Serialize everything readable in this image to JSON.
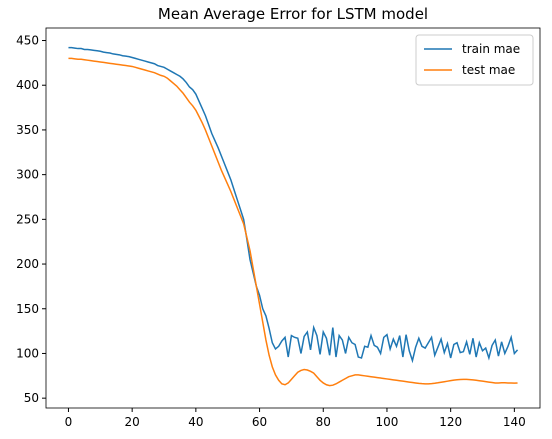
{
  "chart_data": {
    "type": "line",
    "title": "Mean Average Error for LSTM model",
    "x": [
      0,
      1,
      2,
      3,
      4,
      5,
      6,
      7,
      8,
      9,
      10,
      11,
      12,
      13,
      14,
      15,
      16,
      17,
      18,
      19,
      20,
      21,
      22,
      23,
      24,
      25,
      26,
      27,
      28,
      29,
      30,
      31,
      32,
      33,
      34,
      35,
      36,
      37,
      38,
      39,
      40,
      41,
      42,
      43,
      44,
      45,
      46,
      47,
      48,
      49,
      50,
      51,
      52,
      53,
      54,
      55,
      56,
      57,
      58,
      59,
      60,
      61,
      62,
      63,
      64,
      65,
      66,
      67,
      68,
      69,
      70,
      71,
      72,
      73,
      74,
      75,
      76,
      77,
      78,
      79,
      80,
      81,
      82,
      83,
      84,
      85,
      86,
      87,
      88,
      89,
      90,
      91,
      92,
      93,
      94,
      95,
      96,
      97,
      98,
      99,
      100,
      101,
      102,
      103,
      104,
      105,
      106,
      107,
      108,
      109,
      110,
      111,
      112,
      113,
      114,
      115,
      116,
      117,
      118,
      119,
      120,
      121,
      122,
      123,
      124,
      125,
      126,
      127,
      128,
      129,
      130,
      131,
      132,
      133,
      134,
      135,
      136,
      137,
      138,
      139,
      140,
      141
    ],
    "series": [
      {
        "name": "train mae",
        "color": "#1f77b4",
        "values": [
          442,
          442,
          441.5,
          441,
          441,
          440,
          440,
          439.5,
          439,
          438.5,
          438,
          437,
          436.5,
          436,
          435,
          434.5,
          434,
          433,
          432.5,
          432,
          431,
          430,
          429,
          428,
          427,
          426,
          425,
          424,
          422,
          421,
          420,
          418,
          416,
          414,
          412,
          410,
          407,
          403,
          398,
          395,
          390,
          382,
          374,
          366,
          356,
          346,
          338,
          330,
          321,
          312,
          303,
          294,
          283,
          272,
          261,
          250,
          228,
          205,
          190,
          175,
          165,
          150,
          142,
          128,
          112,
          105,
          108,
          114,
          118,
          96,
          120,
          118,
          117,
          100,
          119,
          124,
          104,
          129,
          120,
          99,
          124,
          117,
          98,
          129,
          96,
          120,
          115,
          100,
          118,
          112,
          110,
          96,
          95,
          108,
          107,
          120,
          109,
          107,
          100,
          118,
          121,
          105,
          116,
          108,
          120,
          96,
          121,
          103,
          92,
          107,
          117,
          108,
          106,
          112,
          118,
          98,
          107,
          116,
          101,
          111,
          95,
          110,
          112,
          101,
          102,
          113,
          99,
          117,
          96,
          112,
          103,
          106,
          95,
          109,
          115,
          97,
          113,
          100,
          108,
          118,
          100,
          104
        ]
      },
      {
        "name": "test mae",
        "color": "#ff7f0e",
        "values": [
          430,
          430,
          429.5,
          429,
          429,
          428.5,
          428,
          427.5,
          427,
          426.5,
          426,
          425.5,
          425,
          424.5,
          424,
          423.5,
          423,
          422.5,
          422,
          421.5,
          421,
          420,
          419,
          418,
          417,
          416,
          415,
          414,
          412.5,
          411,
          410,
          408,
          405,
          402,
          399,
          395,
          391,
          386,
          381,
          377,
          372,
          365,
          358,
          350,
          341,
          332,
          323,
          314,
          305,
          297,
          289,
          281,
          272,
          263,
          254,
          245,
          230,
          215,
          195,
          175,
          155,
          135,
          115,
          98,
          85,
          76,
          70,
          66,
          65,
          67,
          71,
          75,
          79,
          81,
          82,
          81.5,
          80,
          78,
          74,
          70,
          67,
          65,
          64,
          64.5,
          66,
          68,
          70,
          72,
          74,
          75,
          76,
          76,
          75.5,
          75,
          74.5,
          74,
          73.5,
          73,
          72.5,
          72,
          71.5,
          71,
          70.5,
          70,
          69.5,
          69,
          68.5,
          68,
          67.5,
          67,
          66.5,
          66.2,
          66,
          66,
          66.3,
          66.7,
          67.2,
          67.8,
          68.4,
          69,
          69.6,
          70.2,
          70.6,
          70.9,
          71,
          71,
          70.8,
          70.5,
          70,
          69.5,
          69,
          68.5,
          68,
          67.5,
          67,
          67,
          67.2,
          67.2,
          67,
          67,
          66.8,
          67
        ]
      }
    ],
    "xlim": [
      -7.05,
      148.05
    ],
    "xticks": [
      0,
      20,
      40,
      60,
      80,
      100,
      120,
      140
    ],
    "ylim": [
      39,
      464
    ],
    "yticks": [
      50,
      100,
      150,
      200,
      250,
      300,
      350,
      400,
      450
    ],
    "grid": false,
    "legend": "upper right"
  }
}
